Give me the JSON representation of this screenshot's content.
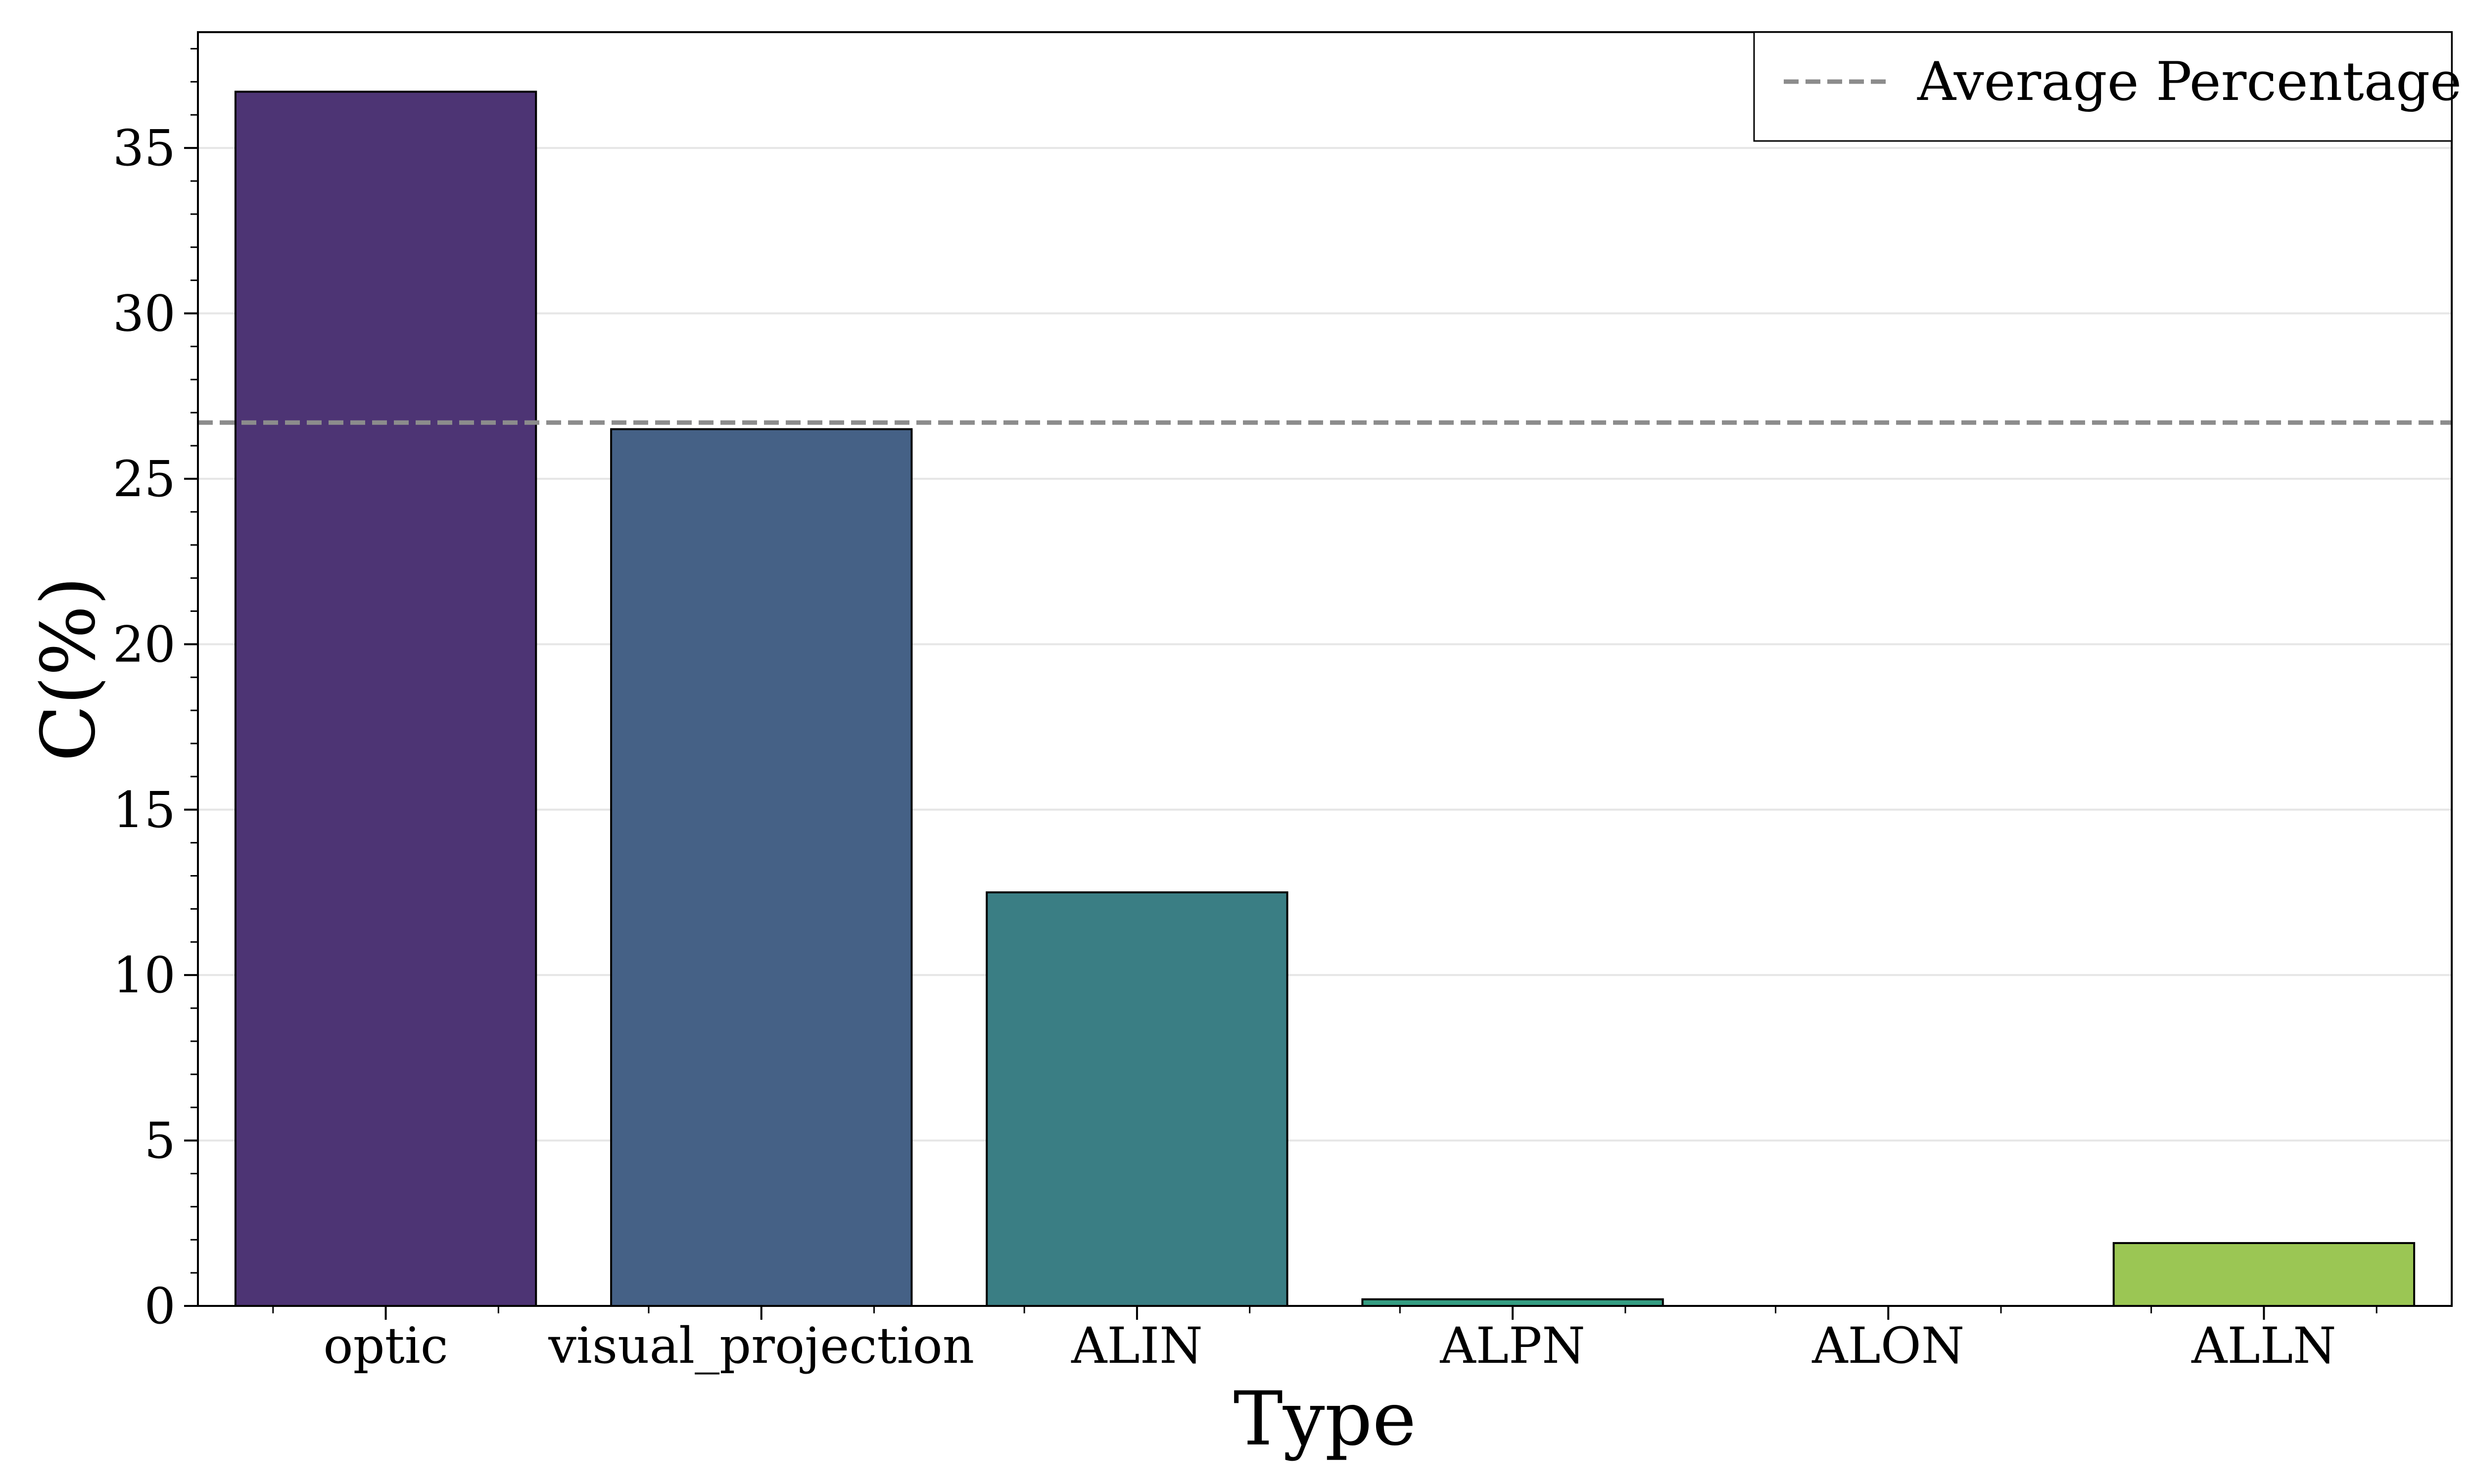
{
  "chart_data": {
    "type": "bar",
    "categories": [
      "optic",
      "visual_projection",
      "ALIN",
      "ALPN",
      "ALON",
      "ALLN"
    ],
    "values": [
      36.7,
      26.5,
      12.5,
      0.2,
      0.0,
      1.9
    ],
    "bar_colors": [
      "#472d70",
      "#3f5c82",
      "#347a80",
      "#2e9a7e",
      "#62b760",
      "#98c44e"
    ],
    "xlabel": "Type",
    "ylabel": "C(%)",
    "ylim": [
      0,
      38.5
    ],
    "yticks": [
      0,
      5,
      10,
      15,
      20,
      25,
      30,
      35
    ],
    "yticks_minor_step": 1,
    "grid": "y",
    "reference_line": {
      "label": "Average Percentage",
      "value": 26.7,
      "color": "#8c8c8c",
      "style": "dashed"
    },
    "legend": {
      "position": "top-right",
      "entries": [
        "Average Percentage"
      ]
    }
  }
}
